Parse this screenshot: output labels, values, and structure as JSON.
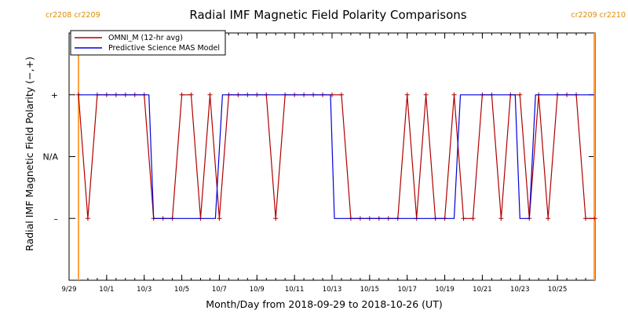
{
  "chart_data": {
    "type": "line",
    "title": "Radial IMF Magnetic Field Polarity Comparisons",
    "xlabel": "Month/Day from 2018-09-29 to 2018-10-26 (UT)",
    "ylabel": "Radial IMF Magnetic Field Polarity (−,+)",
    "x_unit": "date",
    "x_range": [
      "2018-09-29",
      "2018-10-27"
    ],
    "y_range": [
      -2,
      2
    ],
    "y_ticks": [
      {
        "value": 1,
        "label": "+"
      },
      {
        "value": 0,
        "label": "N/A"
      },
      {
        "value": -1,
        "label": "–"
      }
    ],
    "x_ticks": [
      {
        "date": "2018-09-29",
        "label": "9/29"
      },
      {
        "date": "2018-10-01",
        "label": "10/1"
      },
      {
        "date": "2018-10-03",
        "label": "10/3"
      },
      {
        "date": "2018-10-05",
        "label": "10/5"
      },
      {
        "date": "2018-10-07",
        "label": "10/7"
      },
      {
        "date": "2018-10-09",
        "label": "10/9"
      },
      {
        "date": "2018-10-11",
        "label": "10/11"
      },
      {
        "date": "2018-10-13",
        "label": "10/13"
      },
      {
        "date": "2018-10-15",
        "label": "10/15"
      },
      {
        "date": "2018-10-17",
        "label": "10/17"
      },
      {
        "date": "2018-10-19",
        "label": "10/19"
      },
      {
        "date": "2018-10-21",
        "label": "10/21"
      },
      {
        "date": "2018-10-23",
        "label": "10/23"
      },
      {
        "date": "2018-10-25",
        "label": "10/25"
      }
    ],
    "carrington_rotations": [
      {
        "date": "2018-09-29 12:00",
        "color": "#ffa040",
        "labels": [
          "cr2208",
          "cr2209"
        ],
        "label_side": "left"
      },
      {
        "date": "2018-10-26 23:00",
        "color": "#ffa040",
        "labels": [
          "cr2209",
          "cr2210"
        ],
        "label_side": "right"
      }
    ],
    "legend": {
      "position": "top-left",
      "entries": [
        {
          "name": "OMNI_M (12-hr avg)",
          "color": "#b00000"
        },
        {
          "name": "Predictive Science MAS Model",
          "color": "#0000dd"
        }
      ]
    },
    "series": [
      {
        "name": "OMNI_M (12-hr avg)",
        "color": "#b00000",
        "marker": "plus",
        "x": [
          "2018-09-29 12:00",
          "2018-09-30 00:00",
          "2018-09-30 12:00",
          "2018-10-01 00:00",
          "2018-10-01 12:00",
          "2018-10-02 00:00",
          "2018-10-02 12:00",
          "2018-10-03 00:00",
          "2018-10-03 12:00",
          "2018-10-04 00:00",
          "2018-10-04 12:00",
          "2018-10-05 00:00",
          "2018-10-05 12:00",
          "2018-10-06 00:00",
          "2018-10-06 12:00",
          "2018-10-07 00:00",
          "2018-10-07 12:00",
          "2018-10-08 00:00",
          "2018-10-08 12:00",
          "2018-10-09 00:00",
          "2018-10-09 12:00",
          "2018-10-10 00:00",
          "2018-10-10 12:00",
          "2018-10-11 00:00",
          "2018-10-11 12:00",
          "2018-10-12 00:00",
          "2018-10-12 12:00",
          "2018-10-13 00:00",
          "2018-10-13 12:00",
          "2018-10-14 00:00",
          "2018-10-14 12:00",
          "2018-10-15 00:00",
          "2018-10-15 12:00",
          "2018-10-16 00:00",
          "2018-10-16 12:00",
          "2018-10-17 00:00",
          "2018-10-17 12:00",
          "2018-10-18 00:00",
          "2018-10-18 12:00",
          "2018-10-19 00:00",
          "2018-10-19 12:00",
          "2018-10-20 00:00",
          "2018-10-20 12:00",
          "2018-10-21 00:00",
          "2018-10-21 12:00",
          "2018-10-22 00:00",
          "2018-10-22 12:00",
          "2018-10-23 00:00",
          "2018-10-23 12:00",
          "2018-10-24 00:00",
          "2018-10-24 12:00",
          "2018-10-25 00:00",
          "2018-10-25 12:00",
          "2018-10-26 00:00",
          "2018-10-26 12:00",
          "2018-10-27 00:00"
        ],
        "y": [
          1,
          -1,
          1,
          1,
          1,
          1,
          1,
          1,
          -1,
          -1,
          -1,
          1,
          1,
          -1,
          1,
          -1,
          1,
          1,
          1,
          1,
          1,
          -1,
          1,
          1,
          1,
          1,
          1,
          1,
          1,
          -1,
          -1,
          -1,
          -1,
          -1,
          -1,
          1,
          -1,
          1,
          -1,
          -1,
          1,
          -1,
          -1,
          1,
          1,
          -1,
          1,
          1,
          -1,
          1,
          -1,
          1,
          1,
          1,
          -1,
          -1
        ]
      },
      {
        "name": "Predictive Science MAS Model",
        "color": "#0000dd",
        "marker": "none",
        "step": true,
        "x": [
          "2018-09-29 12:00",
          "2018-10-03 06:00",
          "2018-10-03 12:00",
          "2018-10-06 19:00",
          "2018-10-07 04:00",
          "2018-10-12 22:00",
          "2018-10-13 03:00",
          "2018-10-19 12:00",
          "2018-10-19 20:00",
          "2018-10-22 18:00",
          "2018-10-23 00:00",
          "2018-10-23 12:00",
          "2018-10-23 20:00",
          "2018-10-26 23:00"
        ],
        "y": [
          1,
          1,
          -1,
          -1,
          1,
          1,
          -1,
          -1,
          1,
          1,
          -1,
          -1,
          1,
          1
        ]
      }
    ]
  }
}
